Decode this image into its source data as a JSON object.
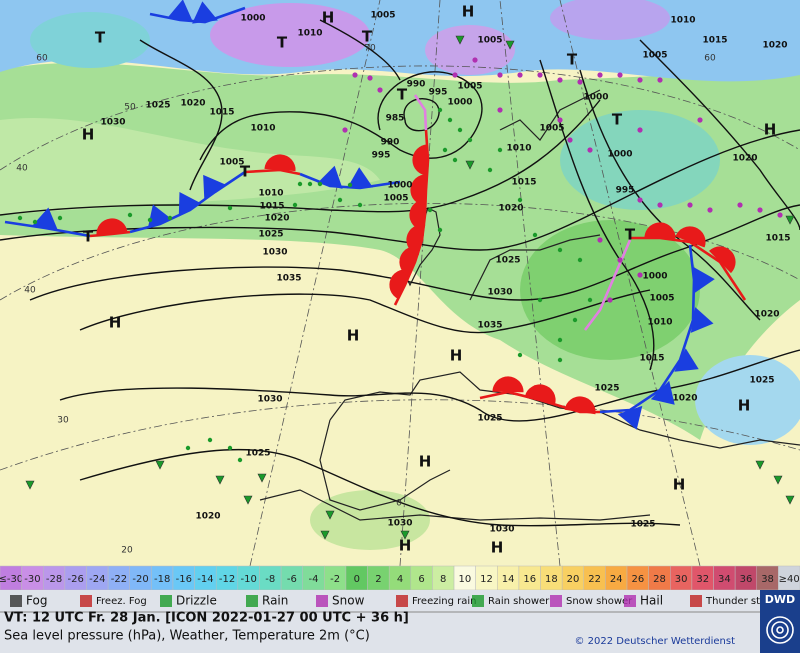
{
  "map": {
    "isobar_labels": [
      "1000",
      "1005",
      "1010",
      "1005",
      "1010",
      "1005",
      "1015",
      "1020",
      "1000",
      "1025",
      "1020",
      "1015",
      "1030",
      "1010",
      "990",
      "995",
      "1000",
      "1005",
      "985",
      "990",
      "995",
      "1005",
      "1005",
      "1010",
      "1000",
      "995",
      "1020",
      "1010",
      "1015",
      "1020",
      "1025",
      "1030",
      "1035",
      "1000",
      "1005",
      "1015",
      "1020",
      "1025",
      "1030",
      "1035",
      "1015",
      "1000",
      "1005",
      "1010",
      "1015",
      "1020",
      "1025",
      "1025",
      "1020",
      "1030",
      "1025",
      "1025",
      "1020",
      "1030",
      "1030",
      "1025"
    ],
    "graticule_labels": [
      "60",
      "50",
      "40",
      "40",
      "30",
      "20",
      "70",
      "60",
      "0"
    ],
    "pressure_centres": [
      "H",
      "H",
      "H",
      "H",
      "H",
      "H",
      "H",
      "H",
      "H",
      "H",
      "H",
      "H",
      "T",
      "T",
      "T",
      "T",
      "T",
      "T",
      "T",
      "T",
      "T"
    ]
  },
  "scale": [
    {
      "label": "≤-30",
      "color": "#c07ee0"
    },
    {
      "label": "-30",
      "color": "#c98fe6"
    },
    {
      "label": "-28",
      "color": "#bb97ea"
    },
    {
      "label": "-26",
      "color": "#ab9eef"
    },
    {
      "label": "-24",
      "color": "#9ea7f3"
    },
    {
      "label": "-22",
      "color": "#8fb0f6"
    },
    {
      "label": "-20",
      "color": "#80b8f8"
    },
    {
      "label": "-18",
      "color": "#74c0f8"
    },
    {
      "label": "-16",
      "color": "#6ac8f6"
    },
    {
      "label": "-14",
      "color": "#62d0f0"
    },
    {
      "label": "-12",
      "color": "#60d6e6"
    },
    {
      "label": "-10",
      "color": "#64dad6"
    },
    {
      "label": "-8",
      "color": "#6adcc4"
    },
    {
      "label": "-6",
      "color": "#74dcae"
    },
    {
      "label": "-4",
      "color": "#80dc9a"
    },
    {
      "label": "-2",
      "color": "#8ee08a"
    },
    {
      "label": "0",
      "color": "#62c862"
    },
    {
      "label": "2",
      "color": "#78d270"
    },
    {
      "label": "4",
      "color": "#94dc7a"
    },
    {
      "label": "6",
      "color": "#b0e68c"
    },
    {
      "label": "8",
      "color": "#ccee a2"
    },
    {
      "label": "10",
      "color": "#fafae0"
    },
    {
      "label": "12",
      "color": "#f8f6c4"
    },
    {
      "label": "14",
      "color": "#f8f0aa"
    },
    {
      "label": "16",
      "color": "#f8e890"
    },
    {
      "label": "18",
      "color": "#f8de78"
    },
    {
      "label": "20",
      "color": "#f8d062"
    },
    {
      "label": "22",
      "color": "#f8c050"
    },
    {
      "label": "24",
      "color": "#f8aa42"
    },
    {
      "label": "26",
      "color": "#f69242"
    },
    {
      "label": "28",
      "color": "#f07a48"
    },
    {
      "label": "30",
      "color": "#e86460"
    },
    {
      "label": "32",
      "color": "#e0566a"
    },
    {
      "label": "34",
      "color": "#d04c70"
    },
    {
      "label": "36",
      "color": "#c0486a"
    },
    {
      "label": "38",
      "color": "#a86868"
    },
    {
      "label": "≥40",
      "color": "#cfd4dc"
    }
  ],
  "legend": [
    "Fog",
    "Freez. Fog",
    "Drizzle",
    "Rain",
    "Snow",
    "Freezing rain",
    "Rain shower",
    "Snow shower",
    "Hail",
    "Thunder storm"
  ],
  "footer": {
    "valid_time": "VT: 12 UTC Fr.  28 Jan. [ICON 2022-01-27  00 UTC + 36 h]",
    "description": "Sea level pressure (hPa), Weather, Temperature 2m (°C)",
    "copyright": "© 2022 Deutscher Wetterdienst",
    "logo": "DWD"
  }
}
